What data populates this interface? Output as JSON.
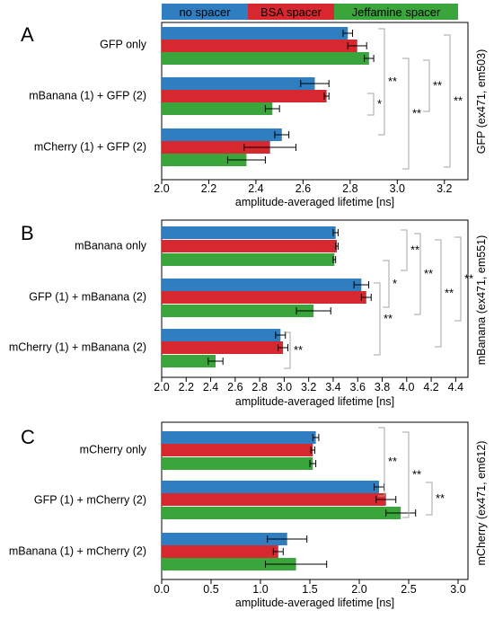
{
  "legend": [
    {
      "label": "no spacer",
      "color": "#2f7ec1"
    },
    {
      "label": "BSA spacer",
      "color": "#d7282f"
    },
    {
      "label": "Jeffamine spacer",
      "color": "#3aa53a"
    }
  ],
  "chart_data": [
    {
      "panel": "A",
      "type": "bar",
      "orientation": "horizontal",
      "xlabel": "amplitude-averaged lifetime [ns]",
      "ylabel": "GFP (ex471, em503)",
      "xlim": [
        2.0,
        3.3
      ],
      "xticks": [
        "2.0",
        "2.2",
        "2.4",
        "2.6",
        "2.8",
        "3.0",
        "3.2"
      ],
      "categories": [
        "GFP only",
        "mBanana (1) + GFP (2)",
        "mCherry (1) + GFP (2)"
      ],
      "series": [
        {
          "name": "no spacer",
          "values": [
            2.79,
            2.65,
            2.51
          ],
          "errors": [
            0.02,
            0.06,
            0.03
          ]
        },
        {
          "name": "BSA spacer",
          "values": [
            2.83,
            2.7,
            2.46
          ],
          "errors": [
            0.04,
            0.01,
            0.11
          ]
        },
        {
          "name": "Jeffamine spacer",
          "values": [
            2.88,
            2.47,
            2.36
          ],
          "errors": [
            0.02,
            0.03,
            0.08
          ]
        }
      ],
      "significance": [
        "*",
        "**",
        "**",
        "**",
        "**"
      ],
      "grid": false
    },
    {
      "panel": "B",
      "type": "bar",
      "orientation": "horizontal",
      "xlabel": "amplitude-averaged lifetime [ns]",
      "ylabel": "mBanana (ex471, em551)",
      "xlim": [
        2.0,
        4.5
      ],
      "xticks": [
        "2.0",
        "2.2",
        "2.4",
        "2.6",
        "2.8",
        "3.0",
        "3.2",
        "3.4",
        "3.6",
        "3.8",
        "4.0",
        "4.2",
        "4.4"
      ],
      "categories": [
        "mBanana only",
        "GFP (1) + mBanana (2)",
        "mCherry (1) + mBanana (2)"
      ],
      "series": [
        {
          "name": "no spacer",
          "values": [
            3.42,
            3.63,
            2.97
          ],
          "errors": [
            0.02,
            0.06,
            0.04
          ]
        },
        {
          "name": "BSA spacer",
          "values": [
            3.43,
            3.67,
            2.99
          ],
          "errors": [
            0.01,
            0.04,
            0.04
          ]
        },
        {
          "name": "Jeffamine spacer",
          "values": [
            3.41,
            3.24,
            2.44
          ],
          "errors": [
            0.01,
            0.14,
            0.06
          ]
        }
      ],
      "significance": [
        "**",
        "**",
        "*",
        "**",
        "**",
        "**",
        "**"
      ],
      "grid": false
    },
    {
      "panel": "C",
      "type": "bar",
      "orientation": "horizontal",
      "xlabel": "amplitude-averaged lifetime [ns]",
      "ylabel": "mCherry (ex471, em612)",
      "xlim": [
        0.0,
        3.1
      ],
      "xticks": [
        "0.0",
        "0.5",
        "1.0",
        "1.5",
        "2.0",
        "2.5",
        "3.0"
      ],
      "categories": [
        "mCherry only",
        "GFP (1) + mCherry (2)",
        "mBanana (1) + mCherry (2)"
      ],
      "series": [
        {
          "name": "no spacer",
          "values": [
            1.56,
            2.2,
            1.27
          ],
          "errors": [
            0.03,
            0.05,
            0.2
          ]
        },
        {
          "name": "BSA spacer",
          "values": [
            1.53,
            2.27,
            1.18
          ],
          "errors": [
            0.02,
            0.1,
            0.05
          ]
        },
        {
          "name": "Jeffamine spacer",
          "values": [
            1.53,
            2.42,
            1.36
          ],
          "errors": [
            0.03,
            0.15,
            0.31
          ]
        }
      ],
      "significance": [
        "**",
        "**",
        "**"
      ],
      "grid": false
    }
  ]
}
